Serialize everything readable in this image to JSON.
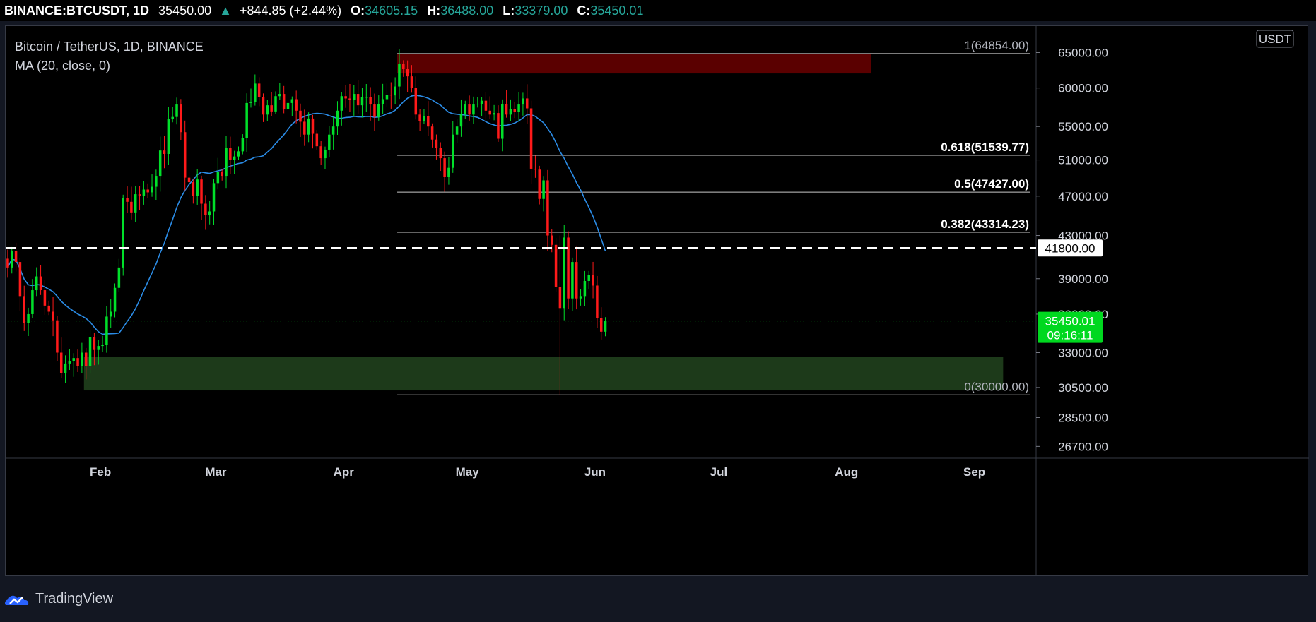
{
  "header": {
    "symbol": "BINANCE:BTCUSDT, 1D",
    "price": "35450.00",
    "arrow": "▲",
    "change": "+844.85 (+2.44%)",
    "o_label": "O:",
    "o_value": "34605.15",
    "h_label": "H:",
    "h_value": "36488.00",
    "l_label": "L:",
    "l_value": "33379.00",
    "c_label": "C:",
    "c_value": "35450.01"
  },
  "legend": {
    "title": "Bitcoin / TetherUS, 1D, BINANCE",
    "indicator": "MA (20, close, 0)"
  },
  "footer": {
    "brand": "TradingView"
  },
  "colors": {
    "up": "#00e02a",
    "down": "#ff1a1a",
    "ma": "#2b8ce6",
    "supply_zone": "#5a0000",
    "demand_zone": "#1d3a1a",
    "price_badge": "#00d81f",
    "background": "#000000"
  },
  "chart_data": {
    "type": "candlestick",
    "currency_badge": "USDT",
    "y_ticks": [
      26700,
      28500,
      30500,
      33000,
      36000,
      39000,
      43000,
      47000,
      51000,
      55000,
      60000,
      65000
    ],
    "y_tick_labels": [
      "26700.00",
      "28500.00",
      "30500.00",
      "33000.00",
      "36000.00",
      "39000.00",
      "43000.00",
      "47000.00",
      "51000.00",
      "55000.00",
      "60000.00",
      "65000.00"
    ],
    "x_ticks": [
      {
        "label": "Feb",
        "date": "2021-02-01"
      },
      {
        "label": "Mar",
        "date": "2021-03-01"
      },
      {
        "label": "Apr",
        "date": "2021-04-01"
      },
      {
        "label": "May",
        "date": "2021-05-01"
      },
      {
        "label": "Jun",
        "date": "2021-06-01"
      },
      {
        "label": "Jul",
        "date": "2021-07-01"
      },
      {
        "label": "Aug",
        "date": "2021-08-01"
      },
      {
        "label": "Sep",
        "date": "2021-09-01"
      }
    ],
    "x_range": [
      "2021-01-09",
      "2021-09-16"
    ],
    "y_range": [
      26000,
      69000
    ],
    "fib_levels": [
      {
        "label": "1(64854.00)",
        "value": 64854,
        "style": "dim"
      },
      {
        "label": "0.618(51539.77)",
        "value": 51539.77,
        "style": "bold"
      },
      {
        "label": "0.5(47427.00)",
        "value": 47427,
        "style": "bold"
      },
      {
        "label": "0.382(43314.23)",
        "value": 43314.23,
        "style": "bold"
      },
      {
        "label": "0(30000.00)",
        "value": 30000,
        "style": "dim"
      }
    ],
    "fib_start_date": "2021-04-14",
    "dashed_level": {
      "value": 41800,
      "label": "41800.00"
    },
    "last_price": {
      "value": 35450.01,
      "label": "35450.01",
      "countdown": "09:16:11"
    },
    "supply_zone": {
      "from": "2021-04-14",
      "to": "2021-08-07",
      "high": 64854,
      "low": 62000
    },
    "demand_zone": {
      "from": "2021-01-28",
      "to": "2021-09-08",
      "high": 32700,
      "low": 30300
    },
    "closes": [
      [
        40000,
        41500,
        40500,
        37500,
        35300,
        36000,
        38000,
        39200,
        38000,
        36700,
        36200,
        35500,
        33000,
        31500,
        32200,
        32400,
        32600,
        32000,
        33000,
        32000,
        34200,
        33200,
        33500,
        33600,
        35800,
        36200,
        38200,
        40000,
        46800,
        46400,
        45300,
        47200,
        47000,
        47700,
        47400,
        48000,
        49200,
        52100,
        51700,
        55900,
        56200,
        57800,
        54300,
        49000,
        48500,
        47000,
        48800,
        46200,
        45000,
        45400,
        48400,
        49600,
        49200,
        52400,
        51000,
        51400,
        52000,
        53600,
        58000,
        58100
      ],
      [
        60600,
        58800,
        56500,
        57700,
        56900,
        58900,
        59200,
        57200,
        58000,
        58500,
        57000,
        55600,
        54000,
        56000,
        54100,
        52600,
        51200,
        52200,
        54000,
        55000,
        57000,
        58900,
        58600,
        58400,
        59200,
        57700,
        58800,
        58800,
        57800,
        56200,
        57900,
        58500,
        59100,
        59000,
        60200,
        63400,
        62600,
        61600,
        60000,
        56500,
        55700,
        56300,
        55000,
        53400,
        52400,
        51200,
        49100,
        50100,
        54000,
        55000,
        56600,
        57800,
        56500,
        57800,
        57900,
        58300,
        57000,
        56500,
        56700,
        53500
      ],
      [
        57900,
        56500,
        57200,
        56800,
        57800,
        58600,
        57300,
        50000,
        49900,
        46700,
        48700,
        43000,
        42100,
        38300,
        36500,
        42800,
        37300,
        40500,
        37300,
        37500,
        38800,
        39300,
        38400,
        35700,
        34600,
        35450
      ]
    ]
  }
}
